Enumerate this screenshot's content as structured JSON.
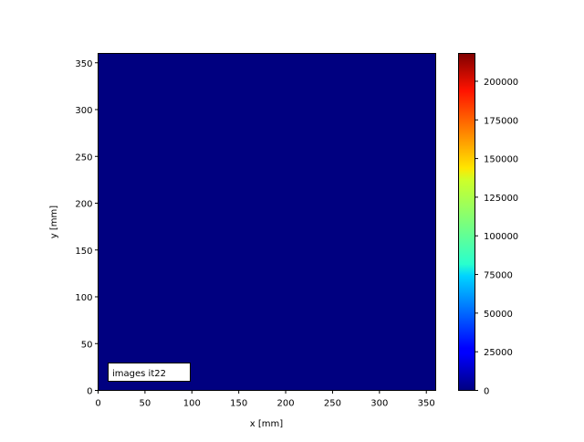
{
  "chart_data": {
    "type": "heatmap",
    "xlabel": "x [mm]",
    "ylabel": "y [mm]",
    "xlim": [
      0,
      360
    ],
    "ylim": [
      0,
      360
    ],
    "xticks": [
      0,
      50,
      100,
      150,
      200,
      250,
      300,
      350
    ],
    "yticks": [
      0,
      50,
      100,
      150,
      200,
      250,
      300,
      350
    ],
    "colormap": "jet",
    "colorbar": {
      "range": [
        0,
        218000
      ],
      "ticks": [
        0,
        25000,
        50000,
        75000,
        100000,
        125000,
        150000,
        175000,
        200000
      ]
    },
    "values": [
      [
        0
      ]
    ],
    "annotation": "images it22",
    "grid": false
  }
}
